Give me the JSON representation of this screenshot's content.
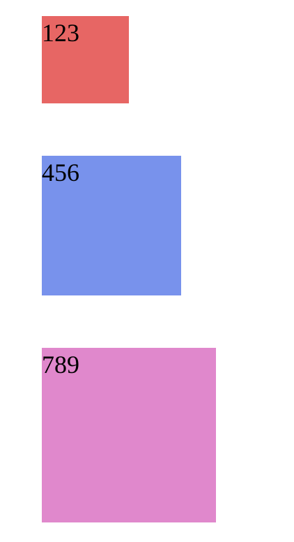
{
  "boxes": [
    {
      "label": "123",
      "color": "#e76664"
    },
    {
      "label": "456",
      "color": "#7892ec"
    },
    {
      "label": "789",
      "color": "#e088cc"
    }
  ]
}
